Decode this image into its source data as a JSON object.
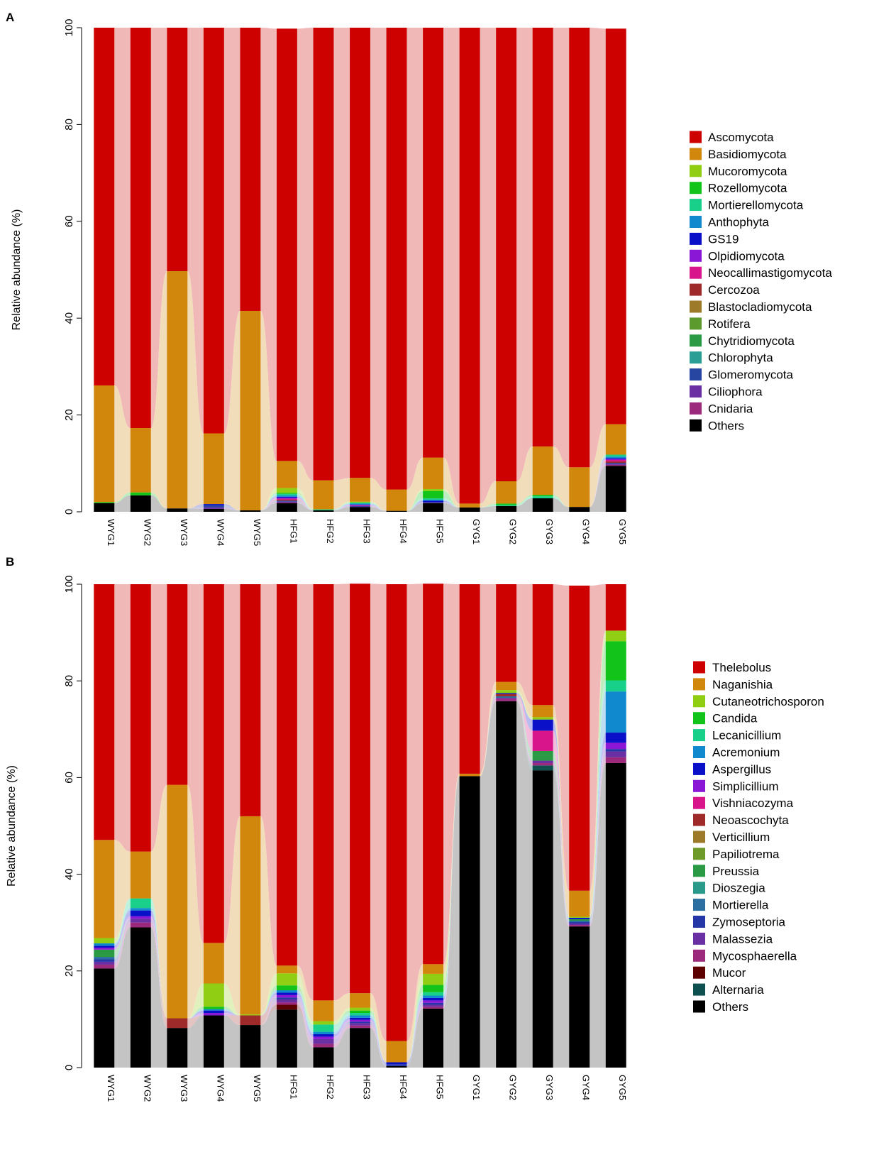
{
  "chart_data": [
    {
      "panel": "A",
      "type": "bar",
      "stacked": true,
      "ylabel": "Relative abundance (%)",
      "ylim": [
        0,
        100
      ],
      "yticks": [
        0,
        20,
        40,
        60,
        80,
        100
      ],
      "categories": [
        "WYG1",
        "WYG2",
        "WYG3",
        "WYG4",
        "WYG5",
        "HFG1",
        "HFG2",
        "HFG3",
        "HFG4",
        "HFG5",
        "GYG1",
        "GYG2",
        "GYG3",
        "GYG4",
        "GYG5"
      ],
      "legend_position": "right",
      "series": [
        {
          "name": "Others",
          "color": "#000000",
          "values": [
            1.8,
            3.4,
            0.7,
            0.6,
            0.3,
            1.8,
            0.3,
            1.0,
            0.2,
            1.8,
            0.9,
            1.2,
            2.8,
            1.0,
            9.5
          ]
        },
        {
          "name": "Cnidaria",
          "color": "#9c2a7c",
          "values": [
            0,
            0,
            0,
            0,
            0,
            0.1,
            0,
            0,
            0,
            0,
            0,
            0,
            0,
            0,
            0.2
          ]
        },
        {
          "name": "Ciliophora",
          "color": "#6a2fa3",
          "values": [
            0,
            0,
            0,
            0.3,
            0,
            0.2,
            0,
            0.1,
            0,
            0.1,
            0,
            0,
            0,
            0,
            0.2
          ]
        },
        {
          "name": "Glomeromycota",
          "color": "#2746a2",
          "values": [
            0,
            0,
            0,
            0.4,
            0,
            0.2,
            0,
            0.1,
            0,
            0.1,
            0,
            0,
            0,
            0,
            0.2
          ]
        },
        {
          "name": "Chlorophyta",
          "color": "#2a9d95",
          "values": [
            0,
            0,
            0,
            0,
            0,
            0,
            0,
            0,
            0,
            0,
            0,
            0,
            0,
            0,
            0
          ]
        },
        {
          "name": "Chytridiomycota",
          "color": "#2a9a45",
          "values": [
            0,
            0,
            0,
            0,
            0,
            0,
            0,
            0,
            0,
            0,
            0,
            0,
            0,
            0,
            0
          ]
        },
        {
          "name": "Rotifera",
          "color": "#5d9a2d",
          "values": [
            0,
            0,
            0,
            0,
            0,
            0,
            0,
            0,
            0,
            0,
            0,
            0,
            0,
            0,
            0
          ]
        },
        {
          "name": "Blastocladiomycota",
          "color": "#9c7a2a",
          "values": [
            0,
            0,
            0,
            0,
            0,
            0,
            0,
            0,
            0,
            0,
            0,
            0,
            0,
            0,
            0
          ]
        },
        {
          "name": "Cercozoa",
          "color": "#9e2a2a",
          "values": [
            0,
            0,
            0,
            0,
            0,
            0.2,
            0,
            0,
            0,
            0,
            0,
            0,
            0,
            0,
            0.3
          ]
        },
        {
          "name": "Neocallimastigomycota",
          "color": "#d8158a",
          "values": [
            0,
            0,
            0,
            0,
            0,
            0.2,
            0,
            0.1,
            0,
            0,
            0,
            0,
            0,
            0,
            0.3
          ]
        },
        {
          "name": "Olpidiomycota",
          "color": "#8a16d6",
          "values": [
            0,
            0,
            0,
            0,
            0,
            0.2,
            0,
            0.1,
            0,
            0,
            0,
            0,
            0,
            0,
            0.2
          ]
        },
        {
          "name": "GS19",
          "color": "#0a10c8",
          "values": [
            0,
            0,
            0,
            0.3,
            0,
            0.2,
            0,
            0.1,
            0,
            0.3,
            0,
            0,
            0,
            0,
            0.2
          ]
        },
        {
          "name": "Anthophyta",
          "color": "#1189cf",
          "values": [
            0,
            0,
            0,
            0,
            0,
            0.3,
            0,
            0.2,
            0,
            0.2,
            0,
            0,
            0,
            0,
            0.3
          ]
        },
        {
          "name": "Mortierellomycota",
          "color": "#18d08a",
          "values": [
            0,
            0,
            0,
            0,
            0,
            0.3,
            0.2,
            0.2,
            0,
            0.3,
            0,
            0.2,
            0.4,
            0,
            0.4
          ]
        },
        {
          "name": "Rozellomycota",
          "color": "#12c41a",
          "values": [
            0.2,
            0.6,
            0,
            0,
            0,
            0.2,
            0,
            0,
            0,
            1.5,
            0,
            0.3,
            0.3,
            0,
            0
          ]
        },
        {
          "name": "Mucoromycota",
          "color": "#8fce13",
          "values": [
            0,
            0,
            0,
            0,
            0,
            1.0,
            0,
            0.2,
            0,
            0.4,
            0,
            0,
            0,
            0,
            0
          ]
        },
        {
          "name": "Basidiomycota",
          "color": "#d0870b",
          "values": [
            24.1,
            13.3,
            49.0,
            14.6,
            41.2,
            5.6,
            6.0,
            4.9,
            4.4,
            6.5,
            0.8,
            4.6,
            10.0,
            8.2,
            6.3
          ]
        },
        {
          "name": "Ascomycota",
          "color": "#cc0100",
          "values": [
            73.9,
            82.7,
            50.3,
            83.8,
            58.5,
            89.3,
            93.5,
            93.0,
            95.4,
            88.8,
            98.3,
            93.7,
            86.5,
            90.8,
            81.7
          ]
        }
      ],
      "legend": [
        "Ascomycota",
        "Basidiomycota",
        "Mucoromycota",
        "Rozellomycota",
        "Mortierellomycota",
        "Anthophyta",
        "GS19",
        "Olpidiomycota",
        "Neocallimastigomycota",
        "Cercozoa",
        "Blastocladiomycota",
        "Rotifera",
        "Chytridiomycota",
        "Chlorophyta",
        "Glomeromycota",
        "Ciliophora",
        "Cnidaria",
        "Others"
      ]
    },
    {
      "panel": "B",
      "type": "bar",
      "stacked": true,
      "ylabel": "Relative abundance (%)",
      "ylim": [
        0,
        100
      ],
      "yticks": [
        0,
        20,
        40,
        60,
        80,
        100
      ],
      "categories": [
        "WYG1",
        "WYG2",
        "WYG3",
        "WYG4",
        "WYG5",
        "HFG1",
        "HFG2",
        "HFG3",
        "HFG4",
        "HFG5",
        "GYG1",
        "GYG2",
        "GYG3",
        "GYG4",
        "GYG5"
      ],
      "legend_position": "right",
      "series": [
        {
          "name": "Others",
          "color": "#000000",
          "values": [
            20.5,
            29.0,
            8.2,
            10.8,
            8.8,
            12.0,
            4.2,
            8.2,
            0.3,
            12.2,
            60.3,
            75.8,
            61.5,
            29.2,
            63.0
          ]
        },
        {
          "name": "Alternaria",
          "color": "#0e4f4f",
          "values": [
            0,
            0,
            0,
            0,
            0,
            0,
            0,
            0,
            0,
            0,
            0,
            0,
            1.0,
            0,
            0
          ]
        },
        {
          "name": "Mucor",
          "color": "#5c0000",
          "values": [
            0,
            0,
            0,
            0,
            0,
            1.0,
            0,
            0,
            0,
            0,
            0,
            0,
            0,
            0,
            0
          ]
        },
        {
          "name": "Mycosphaerella",
          "color": "#9c2a7c",
          "values": [
            0.8,
            1.0,
            0,
            0,
            0,
            0.5,
            0.7,
            0.5,
            0,
            0.4,
            0,
            0.5,
            0.5,
            0.3,
            1.2
          ]
        },
        {
          "name": "Malassezia",
          "color": "#6a2fa3",
          "values": [
            0.6,
            0.8,
            0,
            0,
            0,
            0.6,
            1.0,
            0.5,
            0,
            0.4,
            0,
            0.2,
            0.5,
            0.3,
            1.2
          ]
        },
        {
          "name": "Zymoseptoria",
          "color": "#2536a6",
          "values": [
            0.5,
            0,
            0,
            0,
            0,
            0.4,
            0,
            0.3,
            0.4,
            0.4,
            0,
            0,
            0,
            0.3,
            0.5
          ]
        },
        {
          "name": "Mortierella",
          "color": "#2a6fa0",
          "values": [
            0.5,
            0,
            0,
            0,
            0,
            0,
            0,
            0,
            0,
            0,
            0,
            0.3,
            0,
            0.3,
            0
          ]
        },
        {
          "name": "Dioszegia",
          "color": "#2a9a8a",
          "values": [
            0,
            0,
            0,
            0,
            0,
            0,
            0,
            0,
            0,
            0,
            0,
            0,
            0,
            0,
            0
          ]
        },
        {
          "name": "Preussia",
          "color": "#2a9a45",
          "values": [
            1.5,
            0,
            0,
            0,
            0,
            0,
            0,
            0,
            0,
            0,
            0,
            0,
            2.0,
            0.3,
            0
          ]
        },
        {
          "name": "Papiliotrema",
          "color": "#6e9a2a",
          "values": [
            0,
            0,
            0,
            0,
            0,
            0,
            0,
            0,
            0,
            0,
            0,
            0,
            0,
            0,
            0
          ]
        },
        {
          "name": "Verticillium",
          "color": "#9c7a2a",
          "values": [
            0,
            0,
            0,
            0,
            0,
            0,
            0,
            0,
            0,
            0,
            0,
            0,
            0,
            0,
            0
          ]
        },
        {
          "name": "Neoascochyta",
          "color": "#9e2a2a",
          "values": [
            0,
            0,
            2.0,
            0,
            2.0,
            0,
            0,
            0,
            0,
            0,
            0,
            0.5,
            0,
            0,
            0
          ]
        },
        {
          "name": "Vishniacozyma",
          "color": "#d8158a",
          "values": [
            0,
            0,
            0,
            0,
            0,
            0,
            0,
            0,
            0,
            0,
            0,
            0,
            4.2,
            0,
            0
          ]
        },
        {
          "name": "Simplicillium",
          "color": "#8a16d6",
          "values": [
            0.4,
            0.5,
            0,
            0.5,
            0,
            0.5,
            0.5,
            0.4,
            0,
            0.5,
            0,
            0,
            0,
            0,
            1.3
          ]
        },
        {
          "name": "Aspergillus",
          "color": "#0a10c8",
          "values": [
            0.4,
            1.2,
            0,
            0.5,
            0,
            0.5,
            0.5,
            0.4,
            0.4,
            0.5,
            0,
            0.2,
            2.3,
            0.3,
            2.1
          ]
        },
        {
          "name": "Acremonium",
          "color": "#1189cf",
          "values": [
            0.5,
            0.5,
            0,
            0.3,
            0,
            0.5,
            0.5,
            0.5,
            0,
            0.5,
            0,
            0,
            0,
            0,
            8.5
          ]
        },
        {
          "name": "Lecanicillium",
          "color": "#18d08a",
          "values": [
            0,
            2.0,
            0,
            0,
            0,
            0,
            1.5,
            0.5,
            0,
            0.7,
            0,
            0,
            0,
            0,
            2.3
          ]
        },
        {
          "name": "Candida",
          "color": "#12c41a",
          "values": [
            0,
            0,
            0,
            0.5,
            0,
            1.0,
            0,
            0.5,
            0,
            1.5,
            0,
            0,
            0,
            0,
            8.1
          ]
        },
        {
          "name": "Cutaneotrichosporon",
          "color": "#8fce13",
          "values": [
            1.1,
            0,
            0,
            4.8,
            0.2,
            2.5,
            0.7,
            0.6,
            0,
            2.3,
            0,
            0.6,
            0.5,
            0.2,
            2.2
          ]
        },
        {
          "name": "Naganishia",
          "color": "#d0870b",
          "values": [
            20.3,
            9.7,
            48.3,
            8.4,
            41.0,
            1.6,
            4.3,
            3.0,
            4.4,
            2.0,
            0.5,
            1.7,
            2.5,
            5.4,
            0
          ]
        },
        {
          "name": "Thelebolus",
          "color": "#cc0100",
          "values": [
            52.9,
            55.3,
            41.5,
            74.2,
            48.0,
            78.9,
            86.1,
            84.7,
            94.5,
            78.7,
            39.2,
            20.2,
            25.0,
            63.1,
            9.6
          ]
        }
      ],
      "legend": [
        "Thelebolus",
        "Naganishia",
        "Cutaneotrichosporon",
        "Candida",
        "Lecanicillium",
        "Acremonium",
        "Aspergillus",
        "Simplicillium",
        "Vishniacozyma",
        "Neoascochyta",
        "Verticillium",
        "Papiliotrema",
        "Preussia",
        "Dioszegia",
        "Mortierella",
        "Zymoseptoria",
        "Malassezia",
        "Mycosphaerella",
        "Mucor",
        "Alternaria",
        "Others"
      ]
    }
  ]
}
